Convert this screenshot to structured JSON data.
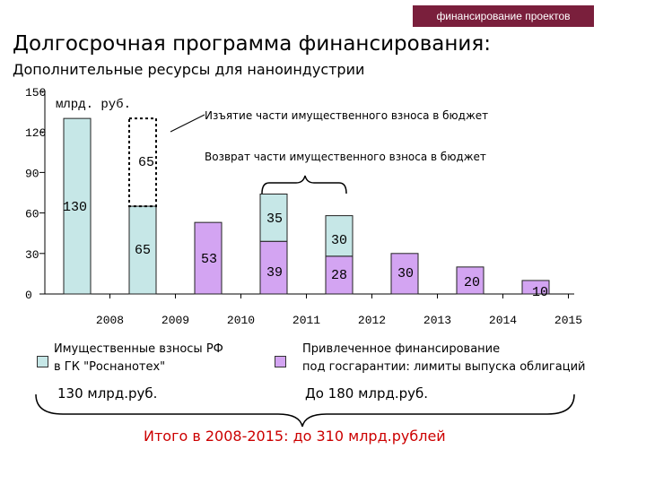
{
  "header": {
    "tag": "финансирование проектов",
    "title": "Долгосрочная программа финансирования:",
    "subtitle": "Дополнительные ресурсы для наноиндустрии"
  },
  "chart_data": {
    "type": "bar",
    "stacked": true,
    "unit_label": "млрд. руб.",
    "categories": [
      "2008",
      "2009",
      "2010",
      "2011",
      "2012",
      "2013",
      "2014",
      "2015"
    ],
    "y_ticks": [
      0,
      30,
      60,
      90,
      120,
      150
    ],
    "ylim": [
      0,
      150
    ],
    "series": [
      {
        "name": "Имущественные взносы РФ в ГК \"Роснанотех\"",
        "color": "#c6e7e7",
        "values": [
          130,
          65,
          0,
          0,
          0,
          0,
          0,
          0
        ]
      },
      {
        "name": "Привлеченное финансирование под госгарантии: лимиты выпуска облигаций",
        "color": "#d3a4f2",
        "values": [
          0,
          0,
          53,
          39,
          28,
          30,
          20,
          10
        ]
      },
      {
        "color": "#c6e7e7",
        "values": [
          0,
          0,
          0,
          35,
          30,
          0,
          0,
          0
        ]
      },
      {
        "dashed": true,
        "values": [
          0,
          65,
          0,
          0,
          0,
          0,
          0,
          0
        ]
      }
    ],
    "data_labels": [
      "130",
      "65",
      "65",
      "53",
      "39",
      "35",
      "28",
      "30",
      "30",
      "20",
      "10"
    ],
    "annotations": {
      "withdrawal": "Изъятие части имущественного взноса в бюджет",
      "return": "Возврат части имущественного взноса в бюджет"
    }
  },
  "legend": {
    "contributions_label_1": "Имущественные взносы РФ",
    "contributions_label_2": "в ГК \"Роснанотех\"",
    "contributions_total": "130 млрд.руб.",
    "financing_label_1": "Привлеченное финансирование",
    "financing_label_2": "под госгарантии: лимиты выпуска облигаций",
    "financing_total": "До 180 млрд.руб.",
    "grand_total": "Итого в 2008-2015: до 310 млрд.рублей"
  }
}
